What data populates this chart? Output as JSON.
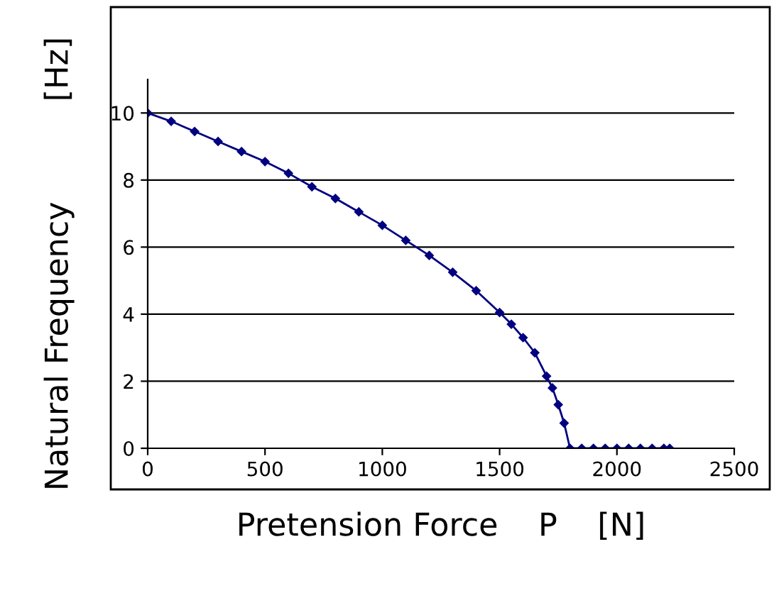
{
  "chart_data": {
    "type": "line",
    "xlabel": "Pretension Force    P    [N]",
    "ylabel": "Natural Frequency          [Hz]",
    "series": [
      {
        "color": "#000080",
        "x": [
          0,
          100,
          200,
          300,
          400,
          500,
          600,
          700,
          800,
          900,
          1000,
          1100,
          1200,
          1300,
          1400,
          1500,
          1550,
          1600,
          1650,
          1700,
          1725,
          1750,
          1775,
          1800,
          1850,
          1900,
          1950,
          2000,
          2050,
          2100,
          2150,
          2200,
          2225
        ],
        "values": [
          10.0,
          9.75,
          9.45,
          9.15,
          8.85,
          8.55,
          8.2,
          7.8,
          7.45,
          7.05,
          6.65,
          6.2,
          5.75,
          5.25,
          4.7,
          4.05,
          3.7,
          3.3,
          2.85,
          2.15,
          1.8,
          1.3,
          0.75,
          0,
          0,
          0,
          0,
          0,
          0,
          0,
          0,
          0,
          0
        ]
      }
    ],
    "xlim": [
      0,
      2500
    ],
    "xticks": [
      0,
      500,
      1000,
      1500,
      2000,
      2500
    ],
    "ylim": [
      0,
      11
    ],
    "yticks": [
      0,
      2,
      4,
      6,
      8,
      10
    ],
    "grid": "y",
    "marker": "diamond",
    "line_style": "solid",
    "legend": false
  }
}
